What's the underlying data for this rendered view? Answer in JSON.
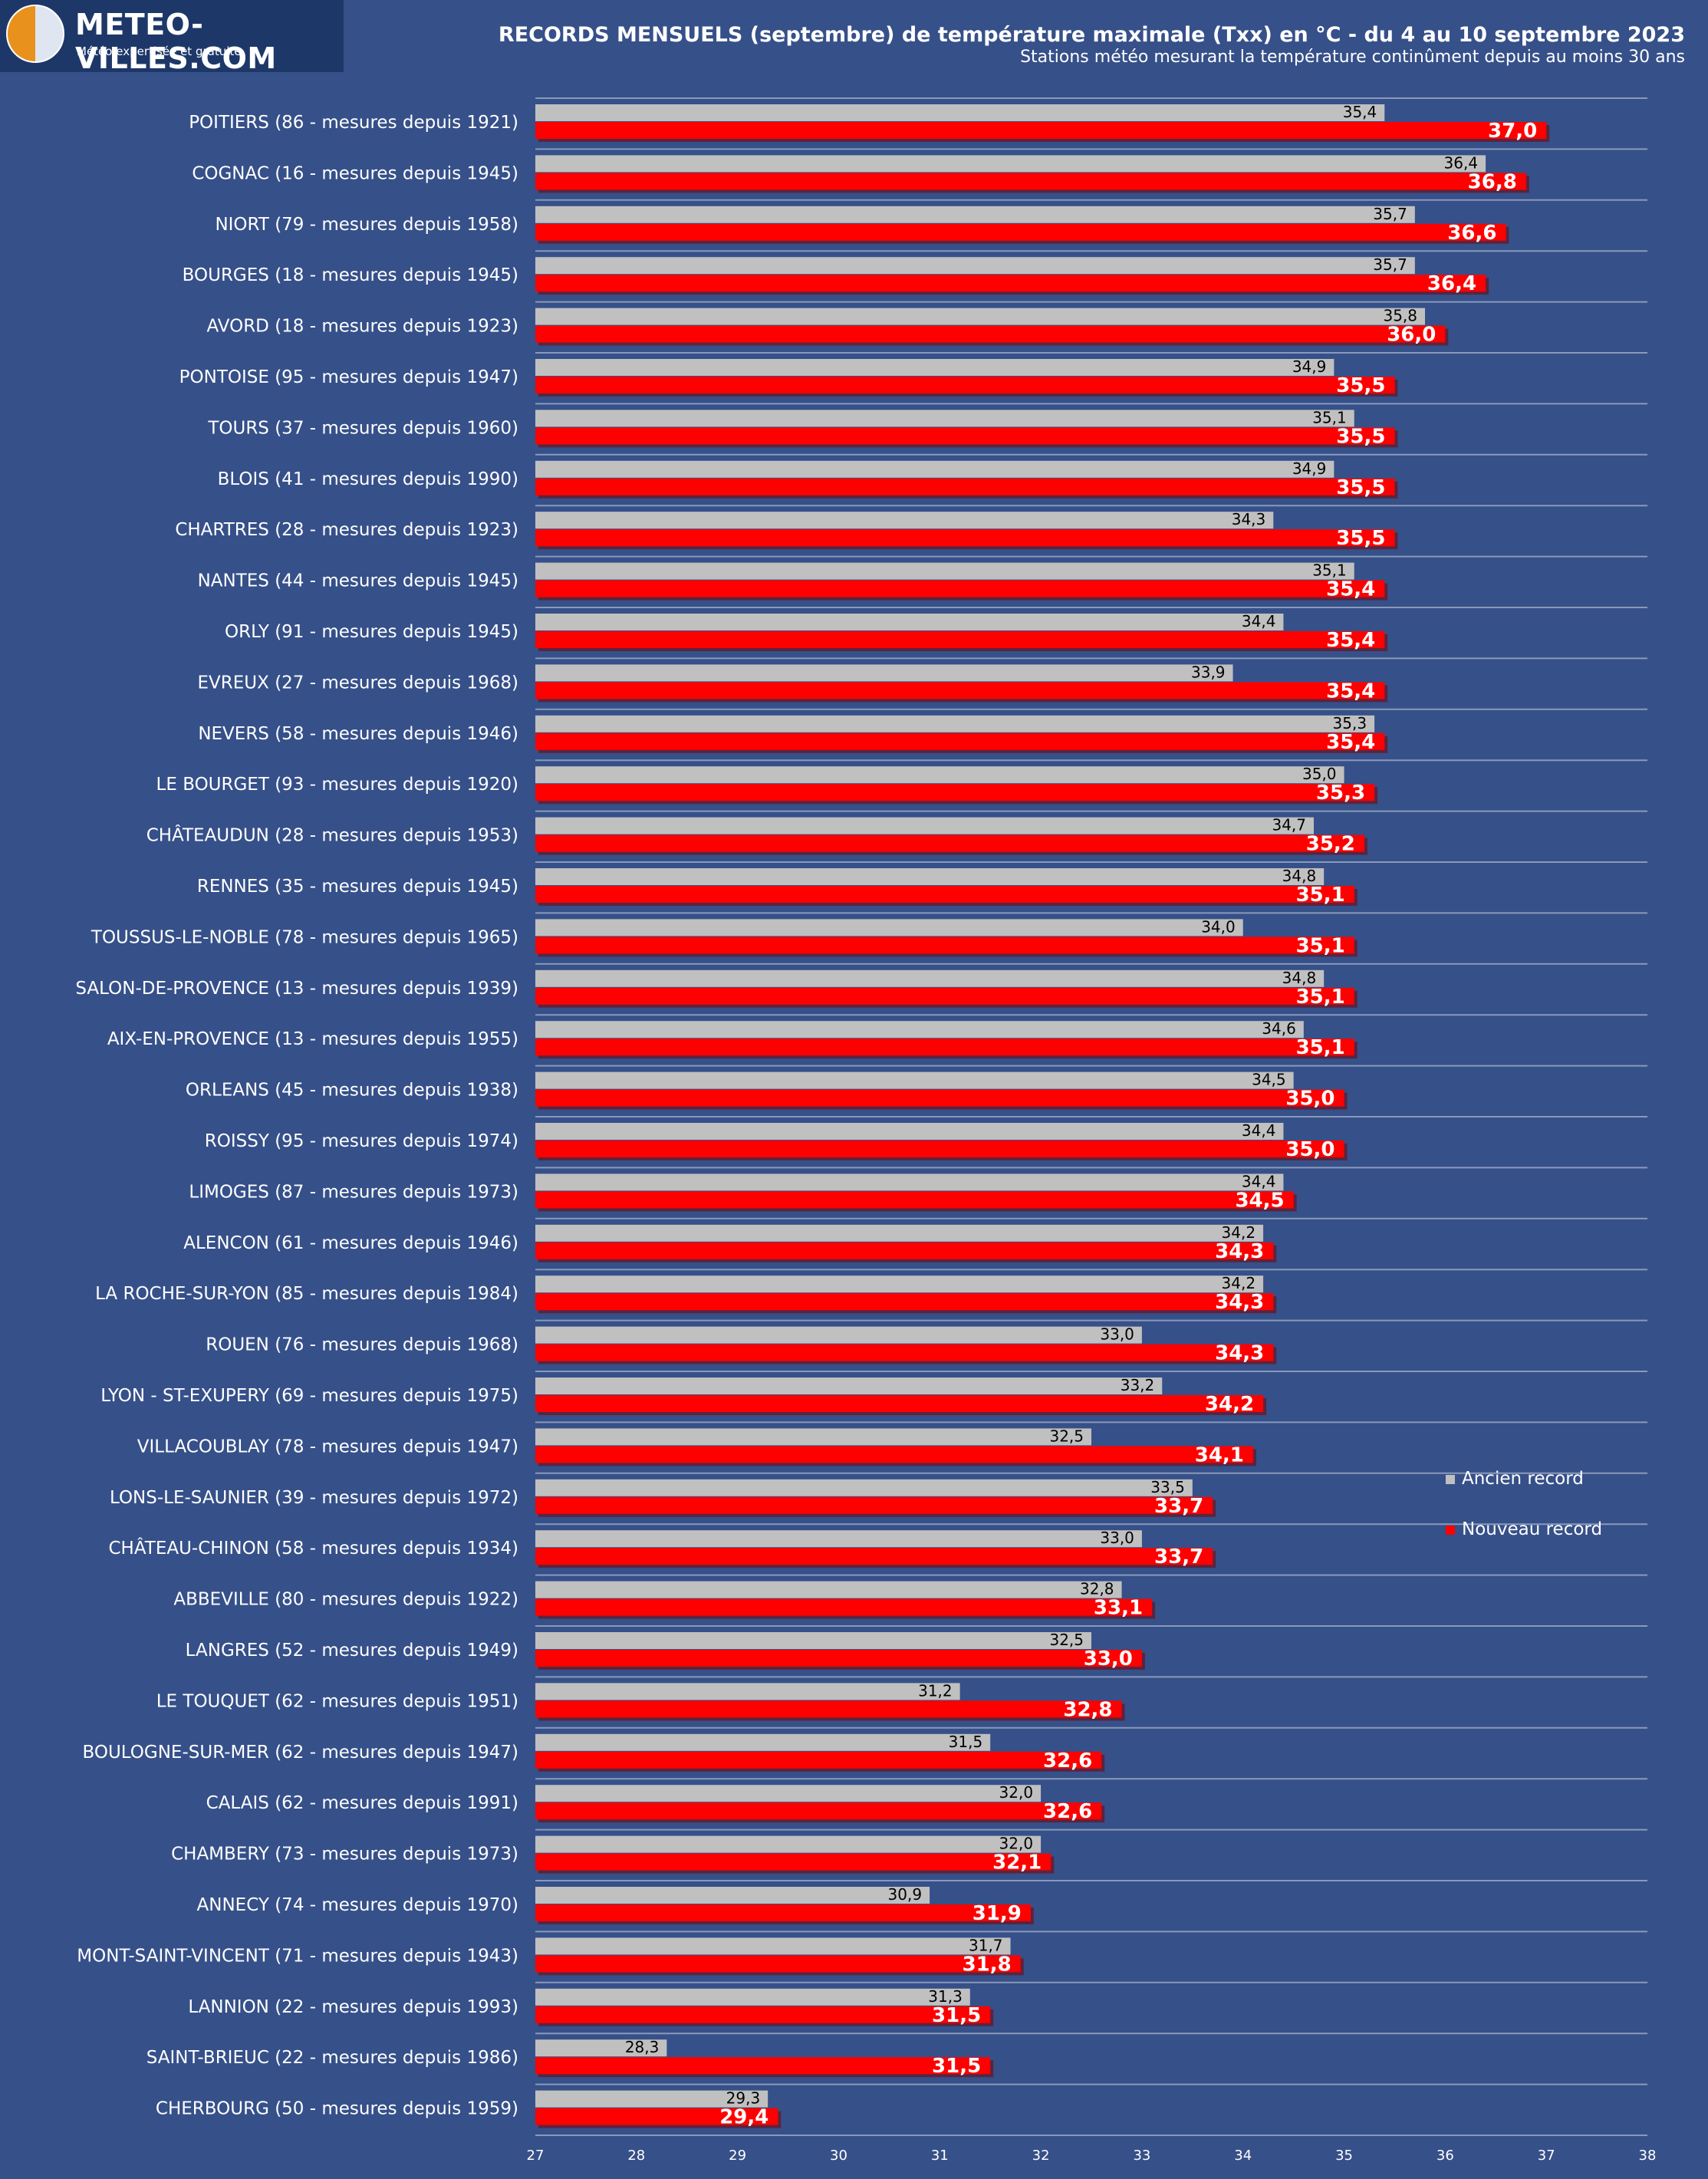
{
  "logo": {
    "name": "METEO-VILLES.COM",
    "tagline": "Météo expertisée et gratuite"
  },
  "header": {
    "title": "RECORDS MENSUELS (septembre) de température maximale (Txx) en °C - du 4 au 10 septembre 2023",
    "subtitle": "Stations météo mesurant la température continûment depuis au moins 30 ans"
  },
  "colors": {
    "background": "#365089",
    "old_record": "#c0c0c0",
    "new_record": "#ff0000",
    "gridline": "#8a99bb"
  },
  "chart_data": {
    "type": "bar",
    "orientation": "horizontal",
    "xlim": [
      27,
      38
    ],
    "x_ticks": [
      "27",
      "28",
      "29",
      "30",
      "31",
      "32",
      "33",
      "34",
      "35",
      "36",
      "37",
      "38"
    ],
    "grid": "horizontal separators",
    "legend_position": "right",
    "categories": [
      "POITIERS (86 - mesures depuis 1921)",
      "COGNAC (16 - mesures depuis 1945)",
      "NIORT (79 - mesures depuis 1958)",
      "BOURGES (18 - mesures depuis 1945)",
      "AVORD (18 - mesures depuis 1923)",
      "PONTOISE (95 - mesures depuis 1947)",
      "TOURS (37 - mesures depuis 1960)",
      "BLOIS (41 - mesures depuis 1990)",
      "CHARTRES (28 - mesures depuis 1923)",
      "NANTES (44 - mesures depuis 1945)",
      "ORLY (91 - mesures depuis 1945)",
      "EVREUX (27 - mesures depuis 1968)",
      "NEVERS (58 - mesures depuis 1946)",
      "LE BOURGET (93 - mesures depuis 1920)",
      "CHÂTEAUDUN (28 - mesures depuis 1953)",
      "RENNES (35 - mesures depuis 1945)",
      "TOUSSUS-LE-NOBLE (78 - mesures depuis 1965)",
      "SALON-DE-PROVENCE (13 - mesures depuis 1939)",
      "AIX-EN-PROVENCE (13 - mesures depuis 1955)",
      "ORLEANS (45 - mesures depuis 1938)",
      "ROISSY (95 - mesures depuis 1974)",
      "LIMOGES (87 - mesures depuis 1973)",
      "ALENCON (61 - mesures depuis 1946)",
      "LA ROCHE-SUR-YON (85 - mesures depuis 1984)",
      "ROUEN (76 - mesures depuis 1968)",
      "LYON - ST-EXUPERY (69 - mesures depuis 1975)",
      "VILLACOUBLAY (78 - mesures depuis 1947)",
      "LONS-LE-SAUNIER (39 - mesures depuis 1972)",
      "CHÂTEAU-CHINON (58 - mesures depuis 1934)",
      "ABBEVILLE (80 - mesures depuis 1922)",
      "LANGRES (52 - mesures depuis 1949)",
      "LE TOUQUET (62 - mesures depuis 1951)",
      "BOULOGNE-SUR-MER (62 - mesures depuis 1947)",
      "CALAIS (62 - mesures depuis 1991)",
      "CHAMBERY (73 - mesures depuis 1973)",
      "ANNECY (74 - mesures depuis 1970)",
      "MONT-SAINT-VINCENT (71 - mesures depuis 1943)",
      "LANNION (22 - mesures depuis 1993)",
      "SAINT-BRIEUC (22 - mesures depuis 1986)",
      "CHERBOURG (50 - mesures depuis 1959)"
    ],
    "series": [
      {
        "name": "Ancien record",
        "color": "#c0c0c0",
        "values": [
          35.4,
          36.4,
          35.7,
          35.7,
          35.8,
          34.9,
          35.1,
          34.9,
          34.3,
          35.1,
          34.4,
          33.9,
          35.3,
          35.0,
          34.7,
          34.8,
          34.0,
          34.8,
          34.6,
          34.5,
          34.4,
          34.4,
          34.2,
          34.2,
          33.0,
          33.2,
          32.5,
          33.5,
          33.0,
          32.8,
          32.5,
          31.2,
          31.5,
          32.0,
          32.0,
          30.9,
          31.7,
          31.3,
          28.3,
          29.3
        ],
        "labels": [
          "35,4",
          "36,4",
          "35,7",
          "35,7",
          "35,8",
          "34,9",
          "35,1",
          "34,9",
          "34,3",
          "35,1",
          "34,4",
          "33,9",
          "35,3",
          "35,0",
          "34,7",
          "34,8",
          "34,0",
          "34,8",
          "34,6",
          "34,5",
          "34,4",
          "34,4",
          "34,2",
          "34,2",
          "33,0",
          "33,2",
          "32,5",
          "33,5",
          "33,0",
          "32,8",
          "32,5",
          "31,2",
          "31,5",
          "32,0",
          "32,0",
          "30,9",
          "31,7",
          "31,3",
          "28,3",
          "29,3"
        ]
      },
      {
        "name": "Nouveau record",
        "color": "#ff0000",
        "values": [
          37.0,
          36.8,
          36.6,
          36.4,
          36.0,
          35.5,
          35.5,
          35.5,
          35.5,
          35.4,
          35.4,
          35.4,
          35.4,
          35.3,
          35.2,
          35.1,
          35.1,
          35.1,
          35.1,
          35.0,
          35.0,
          34.5,
          34.3,
          34.3,
          34.3,
          34.2,
          34.1,
          33.7,
          33.7,
          33.1,
          33.0,
          32.8,
          32.6,
          32.6,
          32.1,
          31.9,
          31.8,
          31.5,
          31.5,
          29.4
        ],
        "labels": [
          "37,0",
          "36,8",
          "36,6",
          "36,4",
          "36,0",
          "35,5",
          "35,5",
          "35,5",
          "35,5",
          "35,4",
          "35,4",
          "35,4",
          "35,4",
          "35,3",
          "35,2",
          "35,1",
          "35,1",
          "35,1",
          "35,1",
          "35,0",
          "35,0",
          "34,5",
          "34,3",
          "34,3",
          "34,3",
          "34,2",
          "34,1",
          "33,7",
          "33,7",
          "33,1",
          "33,0",
          "32,8",
          "32,6",
          "32,6",
          "32,1",
          "31,9",
          "31,8",
          "31,5",
          "31,5",
          "29,4"
        ]
      }
    ]
  }
}
